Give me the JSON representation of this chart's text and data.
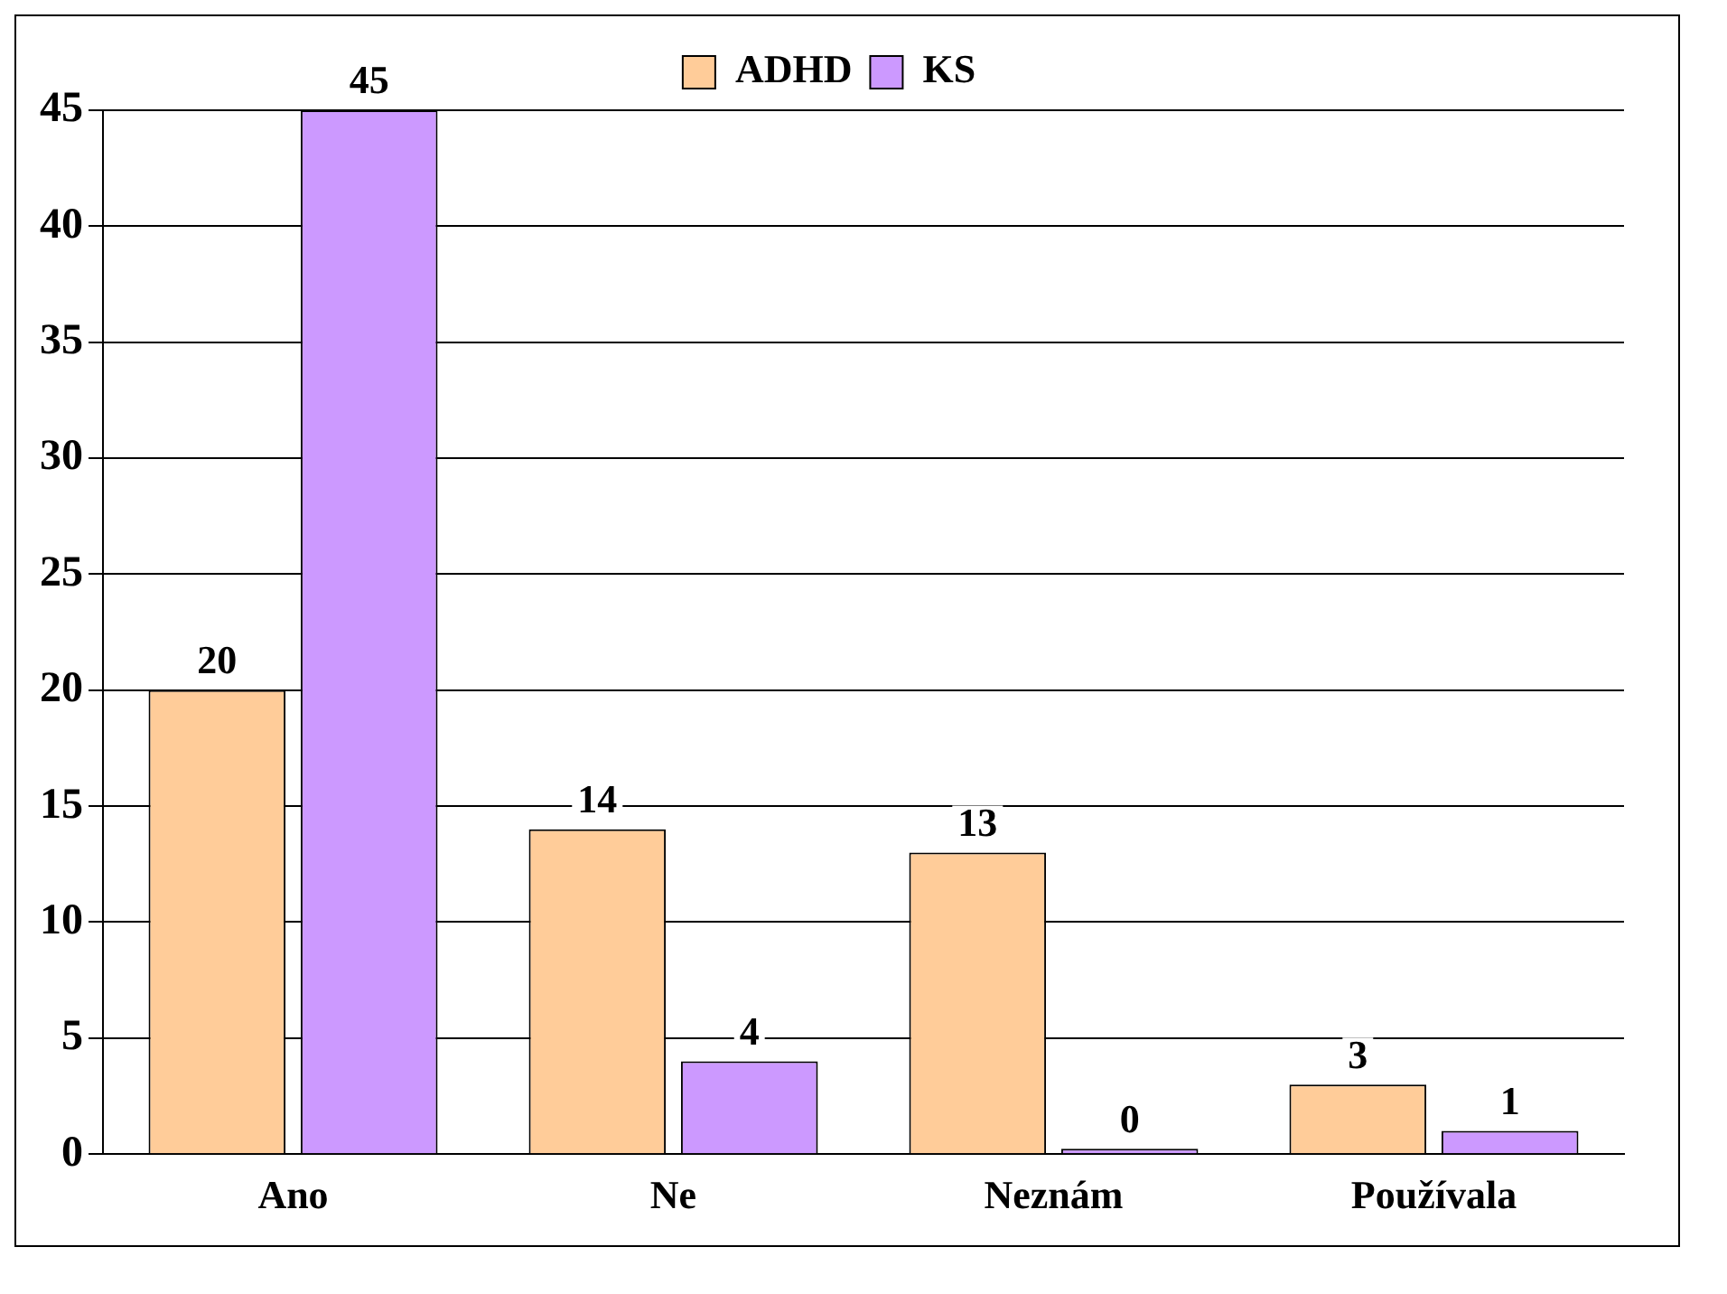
{
  "chart_data": {
    "type": "bar",
    "categories": [
      "Ano",
      "Ne",
      "Neznám",
      "Používala"
    ],
    "series": [
      {
        "name": "ADHD",
        "color": "#ffcc99",
        "values": [
          20,
          14,
          13,
          3
        ]
      },
      {
        "name": "KS",
        "color": "#cc99ff",
        "values": [
          45,
          4,
          0,
          1
        ]
      }
    ],
    "ylim": [
      0,
      45
    ],
    "yticks": [
      0,
      5,
      10,
      15,
      20,
      25,
      30,
      35,
      40,
      45
    ],
    "grid": "y",
    "legend": "top",
    "data_labels": true
  }
}
